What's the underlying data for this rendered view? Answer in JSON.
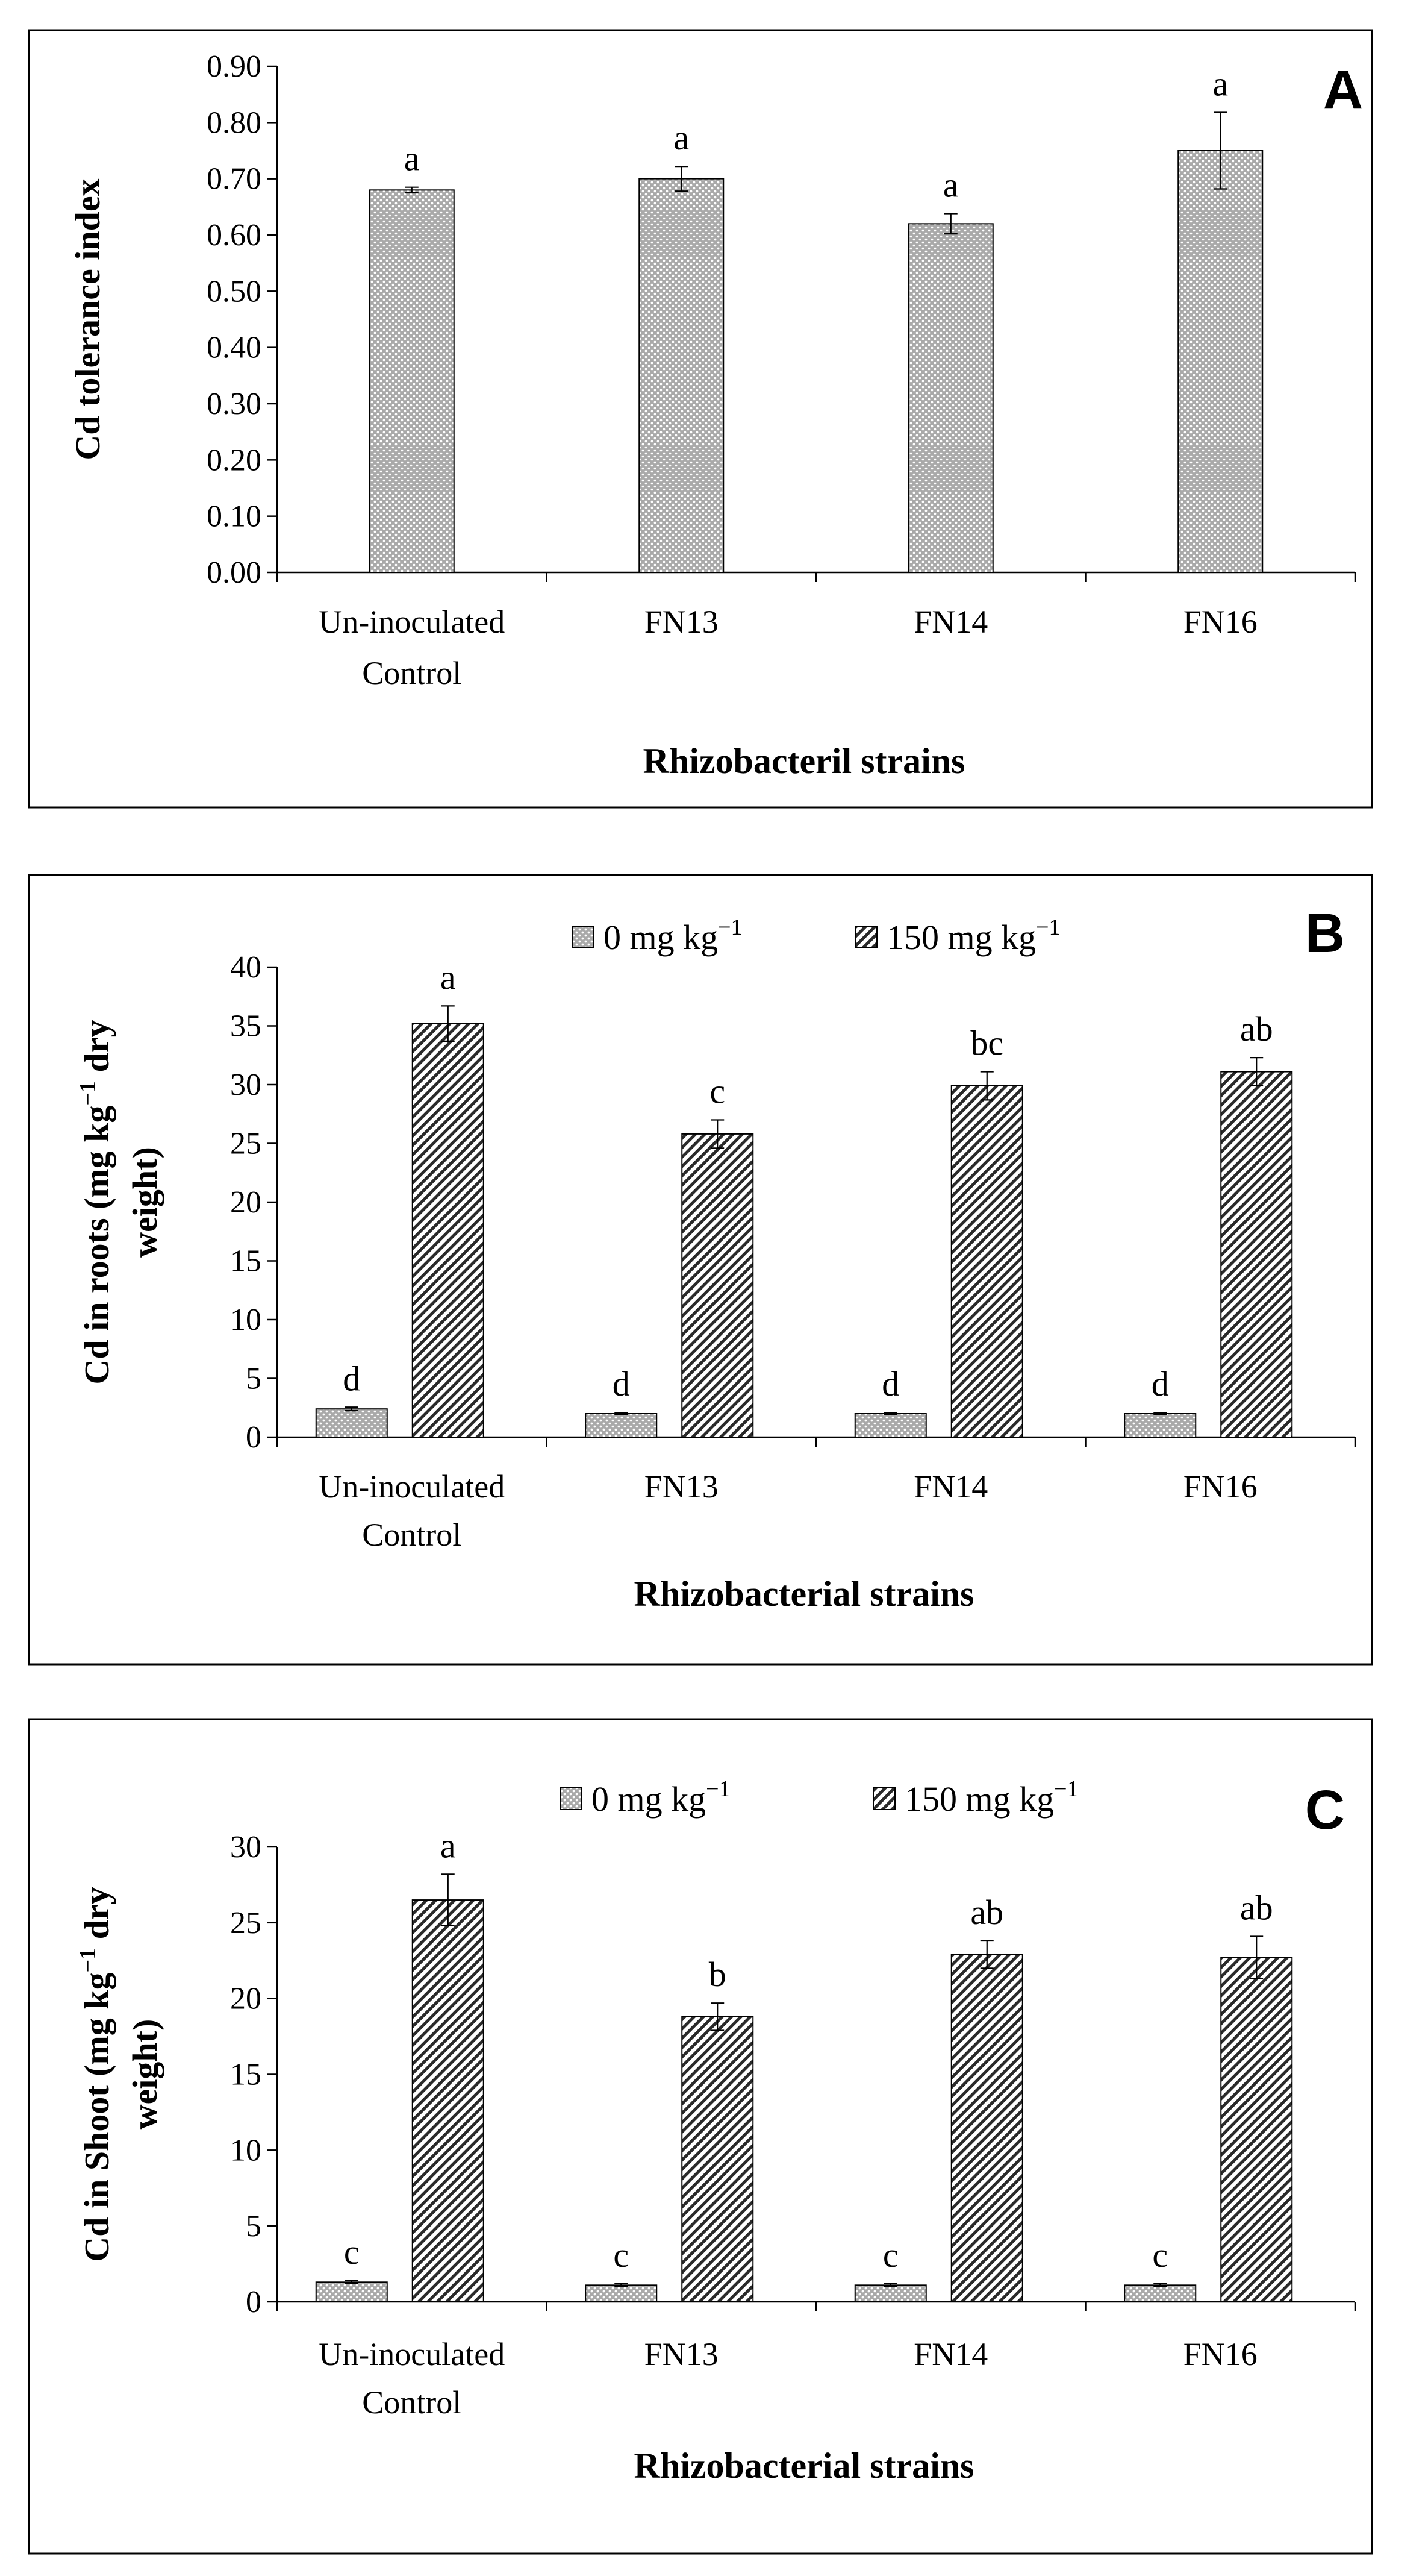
{
  "chart_data": [
    {
      "type": "bar",
      "panel_letter": "A",
      "title": "",
      "ylabel": "Cd tolerance index",
      "xlabel": "Rhizobacteril strains",
      "ylim": [
        0,
        0.9
      ],
      "yticks": [
        "0.00",
        "0.10",
        "0.20",
        "0.30",
        "0.40",
        "0.50",
        "0.60",
        "0.70",
        "0.80",
        "0.90"
      ],
      "ytick_values": [
        0,
        0.1,
        0.2,
        0.3,
        0.4,
        0.5,
        0.6,
        0.7,
        0.8,
        0.9
      ],
      "categories": [
        [
          "Un-inoculated",
          "Control"
        ],
        [
          "FN13"
        ],
        [
          "FN14"
        ],
        [
          "FN16"
        ]
      ],
      "legend": [],
      "series": [
        {
          "name": "Cd tolerance index",
          "pattern": "dots",
          "values": [
            0.68,
            0.7,
            0.62,
            0.75
          ],
          "errors": [
            0.005,
            0.022,
            0.018,
            0.068
          ],
          "labels": [
            "a",
            "a",
            "a",
            "a"
          ]
        }
      ]
    },
    {
      "type": "bar",
      "panel_letter": "B",
      "title": "",
      "ylabel": [
        "Cd in roots (mg kg",
        "−1",
        " dry",
        "weight)"
      ],
      "xlabel": "Rhizobacterial strains",
      "ylim": [
        0,
        40
      ],
      "yticks": [
        "0",
        "5",
        "10",
        "15",
        "20",
        "25",
        "30",
        "35",
        "40"
      ],
      "ytick_values": [
        0,
        5,
        10,
        15,
        20,
        25,
        30,
        35,
        40
      ],
      "categories": [
        [
          "Un-inoculated",
          "Control"
        ],
        [
          "FN13"
        ],
        [
          "FN14"
        ],
        [
          "FN16"
        ]
      ],
      "legend": [
        {
          "base": "0 mg kg",
          "sup": "−1"
        },
        {
          "base": "150 mg kg",
          "sup": "−1"
        }
      ],
      "series": [
        {
          "name": "0 mg kg−1",
          "pattern": "dots",
          "values": [
            2.4,
            2.0,
            2.0,
            2.0
          ],
          "errors": [
            0.15,
            0.1,
            0.1,
            0.1
          ],
          "labels": [
            "d",
            "d",
            "d",
            "d"
          ]
        },
        {
          "name": "150 mg kg−1",
          "pattern": "stripes",
          "values": [
            35.2,
            25.8,
            29.9,
            31.1
          ],
          "errors": [
            1.5,
            1.2,
            1.2,
            1.2
          ],
          "labels": [
            "a",
            "c",
            "bc",
            "ab"
          ]
        }
      ]
    },
    {
      "type": "bar",
      "panel_letter": "C",
      "title": "",
      "ylabel": [
        "Cd in Shoot (mg kg",
        "−1",
        " dry",
        "weight)"
      ],
      "xlabel": "Rhizobacterial strains",
      "ylim": [
        0,
        30
      ],
      "yticks": [
        "0",
        "5",
        "10",
        "15",
        "20",
        "25",
        "30"
      ],
      "ytick_values": [
        0,
        5,
        10,
        15,
        20,
        25,
        30
      ],
      "categories": [
        [
          "Un-inoculated",
          "Control"
        ],
        [
          "FN13"
        ],
        [
          "FN14"
        ],
        [
          "FN16"
        ]
      ],
      "legend": [
        {
          "base": "0 mg kg",
          "sup": "−1"
        },
        {
          "base": "150 mg kg",
          "sup": "−1"
        }
      ],
      "series": [
        {
          "name": "0 mg kg−1",
          "pattern": "dots",
          "values": [
            1.3,
            1.1,
            1.1,
            1.1
          ],
          "errors": [
            0.1,
            0.1,
            0.1,
            0.1
          ],
          "labels": [
            "c",
            "c",
            "c",
            "c"
          ]
        },
        {
          "name": "150 mg kg−1",
          "pattern": "stripes",
          "values": [
            26.5,
            18.8,
            22.9,
            22.7
          ],
          "errors": [
            1.7,
            0.9,
            0.9,
            1.4
          ],
          "labels": [
            "a",
            "b",
            "ab",
            "ab"
          ]
        }
      ]
    }
  ]
}
